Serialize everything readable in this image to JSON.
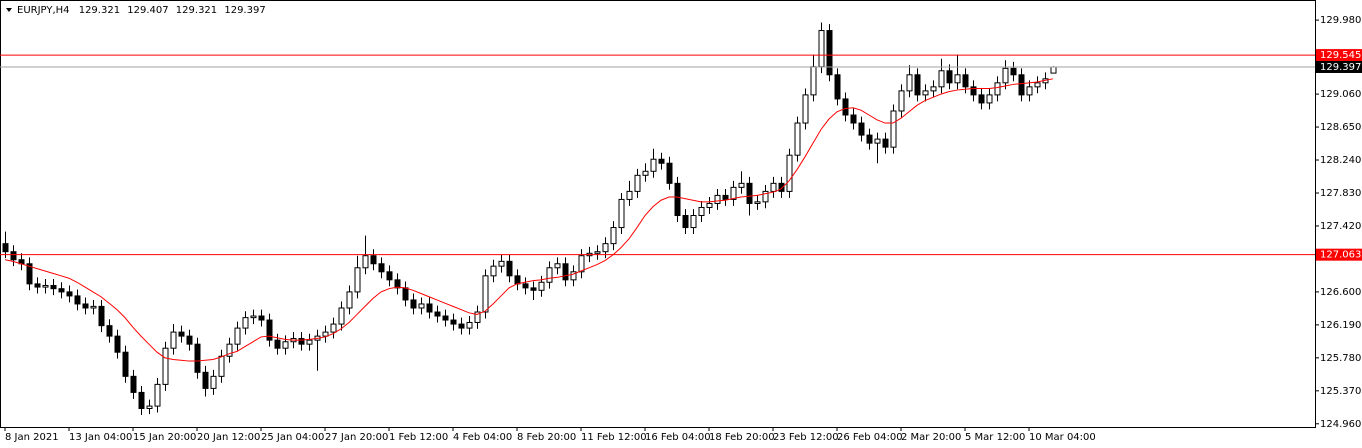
{
  "chart_data": {
    "type": "candlestick",
    "title": "EURJPY,H4",
    "categories": [
      "8 Jan 2021",
      null,
      null,
      null,
      null,
      null,
      null,
      null,
      "13 Jan 04:00",
      null,
      null,
      null,
      null,
      null,
      null,
      null,
      "15 Jan 20:00",
      null,
      null,
      null,
      null,
      null,
      null,
      null,
      "20 Jan 12:00",
      null,
      null,
      null,
      null,
      null,
      null,
      null,
      "25 Jan 04:00",
      null,
      null,
      null,
      null,
      null,
      null,
      null,
      "27 Jan 20:00",
      null,
      null,
      null,
      null,
      null,
      null,
      null,
      "1 Feb 12:00",
      null,
      null,
      null,
      null,
      null,
      null,
      null,
      "4 Feb 04:00",
      null,
      null,
      null,
      null,
      null,
      null,
      null,
      "8 Feb 20:00",
      null,
      null,
      null,
      null,
      null,
      null,
      null,
      "11 Feb 12:00",
      null,
      null,
      null,
      null,
      null,
      null,
      null,
      "16 Feb 04:00",
      null,
      null,
      null,
      null,
      null,
      null,
      null,
      "18 Feb 20:00",
      null,
      null,
      null,
      null,
      null,
      null,
      null,
      "23 Feb 12:00",
      null,
      null,
      null,
      null,
      null,
      null,
      null,
      "26 Feb 04:00",
      null,
      null,
      null,
      null,
      null,
      null,
      null,
      "2 Mar 20:00",
      null,
      null,
      null,
      null,
      null,
      null,
      null,
      "5 Mar 12:00",
      null,
      null,
      null,
      null,
      null,
      null,
      null,
      "10 Mar 04:00",
      null,
      null,
      null
    ],
    "open": [
      127.2,
      127.1,
      127.0,
      126.95,
      126.7,
      126.66,
      126.68,
      126.64,
      126.6,
      126.55,
      126.45,
      126.4,
      126.42,
      126.18,
      126.05,
      125.85,
      125.55,
      125.35,
      125.15,
      125.18,
      125.45,
      125.9,
      126.1,
      126.05,
      125.95,
      125.6,
      125.4,
      125.55,
      125.8,
      125.95,
      126.15,
      126.28,
      126.3,
      126.25,
      126.0,
      125.9,
      125.98,
      126.02,
      125.95,
      126.0,
      126.05,
      126.1,
      126.2,
      126.4,
      126.6,
      126.9,
      127.05,
      126.95,
      126.85,
      126.75,
      126.65,
      126.5,
      126.4,
      126.45,
      126.35,
      126.3,
      126.25,
      126.2,
      126.15,
      126.22,
      126.35,
      126.8,
      126.92,
      126.98,
      126.8,
      126.7,
      126.65,
      126.62,
      126.72,
      126.9,
      126.95,
      126.75,
      126.85,
      127.05,
      127.08,
      127.1,
      127.2,
      127.4,
      127.75,
      127.85,
      128.05,
      128.1,
      128.25,
      128.2,
      127.95,
      127.55,
      127.4,
      127.55,
      127.65,
      127.7,
      127.8,
      127.75,
      127.9,
      127.95,
      127.7,
      127.72,
      127.85,
      127.95,
      127.85,
      128.3,
      128.7,
      129.05,
      129.4,
      129.85,
      129.3,
      129.0,
      128.8,
      128.7,
      128.55,
      128.45,
      128.5,
      128.4,
      128.85,
      129.1,
      129.3,
      129.05,
      129.1,
      129.15,
      129.35,
      129.2,
      129.3,
      129.15,
      129.05,
      128.95,
      129.05,
      129.2,
      129.38,
      129.3,
      129.05,
      129.15,
      129.2,
      129.321
    ],
    "high": [
      127.35,
      127.18,
      127.08,
      127.03,
      126.78,
      126.76,
      126.76,
      126.72,
      126.68,
      126.63,
      126.53,
      126.5,
      126.5,
      126.26,
      126.13,
      125.93,
      125.63,
      125.43,
      125.26,
      125.53,
      125.98,
      126.2,
      126.18,
      126.13,
      126.03,
      125.68,
      125.63,
      125.88,
      126.03,
      126.23,
      126.36,
      126.38,
      126.38,
      126.33,
      126.08,
      126.06,
      126.1,
      126.1,
      126.08,
      126.13,
      126.18,
      126.28,
      126.48,
      126.68,
      127.05,
      127.3,
      127.13,
      127.03,
      126.93,
      126.83,
      126.73,
      126.58,
      126.53,
      126.53,
      126.43,
      126.38,
      126.33,
      126.28,
      126.3,
      126.43,
      126.88,
      127.0,
      127.06,
      127.06,
      126.88,
      126.78,
      126.73,
      126.8,
      126.98,
      127.03,
      127.03,
      126.93,
      127.13,
      127.16,
      127.18,
      127.28,
      127.48,
      127.83,
      127.98,
      128.13,
      128.2,
      128.38,
      128.33,
      128.28,
      128.03,
      127.63,
      127.63,
      127.73,
      127.78,
      127.88,
      127.88,
      127.98,
      128.1,
      128.03,
      127.8,
      127.93,
      128.03,
      128.03,
      128.38,
      128.78,
      129.13,
      129.55,
      129.95,
      129.93,
      129.38,
      129.08,
      128.88,
      128.78,
      128.63,
      128.58,
      128.58,
      128.93,
      129.18,
      129.42,
      129.38,
      129.18,
      129.23,
      129.5,
      129.43,
      129.55,
      129.38,
      129.23,
      129.13,
      129.13,
      129.28,
      129.48,
      129.46,
      129.38,
      129.23,
      129.28,
      129.33,
      129.407
    ],
    "low": [
      127.02,
      126.92,
      126.87,
      126.62,
      126.58,
      126.58,
      126.56,
      126.52,
      126.47,
      126.37,
      126.32,
      126.32,
      126.1,
      125.97,
      125.77,
      125.47,
      125.27,
      125.07,
      125.08,
      125.1,
      125.37,
      125.82,
      125.97,
      125.87,
      125.52,
      125.3,
      125.32,
      125.47,
      125.72,
      125.87,
      126.07,
      126.2,
      126.17,
      125.92,
      125.82,
      125.82,
      125.9,
      125.87,
      125.87,
      125.62,
      125.97,
      126.02,
      126.12,
      126.32,
      126.52,
      126.82,
      126.87,
      126.77,
      126.67,
      126.57,
      126.42,
      126.32,
      126.32,
      126.27,
      126.22,
      126.17,
      126.12,
      126.07,
      126.07,
      126.14,
      126.27,
      126.72,
      126.84,
      126.72,
      126.62,
      126.57,
      126.5,
      126.54,
      126.64,
      126.82,
      126.67,
      126.67,
      126.77,
      126.97,
      127.0,
      127.02,
      127.12,
      127.32,
      127.67,
      127.77,
      127.97,
      128.02,
      128.12,
      127.87,
      127.47,
      127.32,
      127.32,
      127.47,
      127.57,
      127.62,
      127.67,
      127.67,
      127.82,
      127.55,
      127.62,
      127.64,
      127.77,
      127.77,
      127.77,
      128.22,
      128.62,
      128.97,
      129.32,
      129.22,
      128.92,
      128.72,
      128.62,
      128.47,
      128.37,
      128.2,
      128.32,
      128.32,
      128.77,
      129.02,
      128.97,
      128.97,
      129.02,
      129.07,
      129.12,
      129.12,
      129.07,
      128.97,
      128.87,
      128.87,
      128.97,
      129.12,
      129.22,
      128.97,
      128.97,
      129.07,
      129.12,
      129.321
    ],
    "close": [
      127.1,
      127.0,
      126.95,
      126.7,
      126.66,
      126.68,
      126.64,
      126.6,
      126.55,
      126.45,
      126.4,
      126.42,
      126.18,
      126.05,
      125.85,
      125.55,
      125.35,
      125.15,
      125.18,
      125.45,
      125.9,
      126.1,
      126.05,
      125.95,
      125.6,
      125.4,
      125.55,
      125.8,
      125.95,
      126.15,
      126.28,
      126.3,
      126.25,
      126.0,
      125.9,
      125.98,
      126.02,
      125.95,
      126.0,
      126.05,
      126.1,
      126.2,
      126.4,
      126.6,
      126.9,
      127.05,
      126.95,
      126.85,
      126.75,
      126.65,
      126.5,
      126.4,
      126.45,
      126.35,
      126.3,
      126.25,
      126.2,
      126.15,
      126.22,
      126.35,
      126.8,
      126.92,
      126.98,
      126.8,
      126.7,
      126.65,
      126.62,
      126.72,
      126.9,
      126.95,
      126.75,
      126.85,
      127.05,
      127.08,
      127.1,
      127.2,
      127.4,
      127.75,
      127.85,
      128.05,
      128.1,
      128.25,
      128.2,
      127.95,
      127.55,
      127.4,
      127.55,
      127.65,
      127.7,
      127.8,
      127.75,
      127.9,
      127.95,
      127.7,
      127.72,
      127.85,
      127.95,
      127.85,
      128.3,
      128.7,
      129.05,
      129.4,
      129.85,
      129.3,
      129.0,
      128.8,
      128.7,
      128.55,
      128.45,
      128.5,
      128.4,
      128.85,
      129.1,
      129.3,
      129.05,
      129.1,
      129.15,
      129.35,
      129.2,
      129.3,
      129.15,
      129.05,
      128.95,
      129.05,
      129.2,
      129.38,
      129.3,
      129.05,
      129.15,
      129.2,
      129.25,
      129.397
    ],
    "ma": {
      "color": "#ff0000",
      "values": [
        127.0,
        126.98,
        126.95,
        126.92,
        126.89,
        126.86,
        126.83,
        126.8,
        126.77,
        126.72,
        126.66,
        126.6,
        126.54,
        126.46,
        126.38,
        126.28,
        126.16,
        126.05,
        125.95,
        125.85,
        125.78,
        125.76,
        125.75,
        125.74,
        125.74,
        125.75,
        125.76,
        125.79,
        125.83,
        125.86,
        125.92,
        125.98,
        126.04,
        126.05,
        126.03,
        126.01,
        126.0,
        126.0,
        126.01,
        126.02,
        126.04,
        126.08,
        126.14,
        126.22,
        126.32,
        126.42,
        126.52,
        126.6,
        126.64,
        126.66,
        126.65,
        126.62,
        126.58,
        126.54,
        126.5,
        126.46,
        126.42,
        126.38,
        126.34,
        126.32,
        126.36,
        126.45,
        126.55,
        126.65,
        126.7,
        126.72,
        126.74,
        126.75,
        126.77,
        126.78,
        126.8,
        126.82,
        126.86,
        126.9,
        126.94,
        126.99,
        127.06,
        127.15,
        127.26,
        127.4,
        127.55,
        127.66,
        127.74,
        127.78,
        127.78,
        127.76,
        127.74,
        127.72,
        127.72,
        127.73,
        127.74,
        127.76,
        127.78,
        127.79,
        127.8,
        127.82,
        127.84,
        127.88,
        127.98,
        128.12,
        128.28,
        128.45,
        128.62,
        128.75,
        128.84,
        128.88,
        128.89,
        128.86,
        128.8,
        128.74,
        128.7,
        128.7,
        128.76,
        128.84,
        128.92,
        128.98,
        129.02,
        129.06,
        129.09,
        129.11,
        129.12,
        129.13,
        129.13,
        129.13,
        129.14,
        129.16,
        129.18,
        129.19,
        129.2,
        129.21,
        129.23,
        129.25
      ]
    },
    "levels": [
      {
        "value": 129.545,
        "color": "#ff0000"
      },
      {
        "value": 127.063,
        "color": "#ff0000"
      }
    ],
    "current_color": "#a0a0a0",
    "ylim": [
      124.92,
      130.23
    ],
    "yticks": [
      {
        "value": 129.98,
        "label": "129.980"
      },
      {
        "value": 129.06,
        "label": "129.060"
      },
      {
        "value": 128.65,
        "label": "128.650"
      },
      {
        "value": 128.24,
        "label": "128.240"
      },
      {
        "value": 127.83,
        "label": "127.830"
      },
      {
        "value": 127.42,
        "label": "127.420"
      },
      {
        "value": 126.6,
        "label": "126.600"
      },
      {
        "value": 126.19,
        "label": "126.190"
      },
      {
        "value": 125.78,
        "label": "125.780"
      },
      {
        "value": 125.37,
        "label": "125.370"
      },
      {
        "value": 124.96,
        "label": "124.960"
      }
    ]
  }
}
